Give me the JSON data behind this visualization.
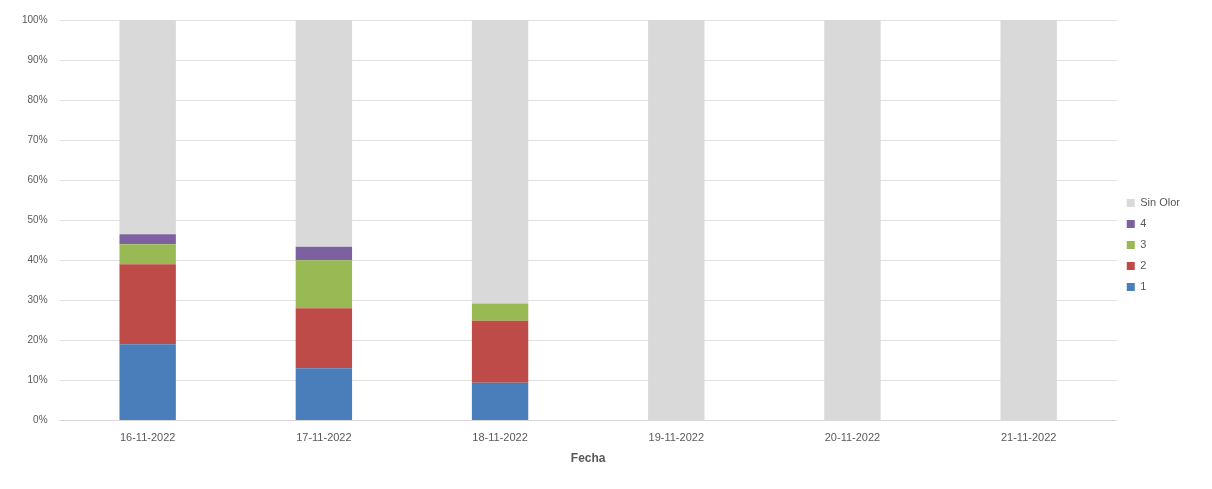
{
  "chart_data": {
    "type": "bar",
    "stacked": true,
    "xlabel": "Fecha",
    "categories": [
      "16-11-2022",
      "17-11-2022",
      "18-11-2022",
      "19-11-2022",
      "20-11-2022",
      "21-11-2022"
    ],
    "series": [
      {
        "name": "1",
        "color": "#4a7ebb",
        "values": [
          19,
          13,
          9.4,
          0,
          0,
          0
        ]
      },
      {
        "name": "2",
        "color": "#be4b48",
        "values": [
          20,
          15,
          15.5,
          0,
          0,
          0
        ]
      },
      {
        "name": "3",
        "color": "#98b954",
        "values": [
          5,
          12,
          4.3,
          0,
          0,
          0
        ]
      },
      {
        "name": "4",
        "color": "#7d60a0",
        "values": [
          2.5,
          3.4,
          0,
          0,
          0,
          0
        ]
      },
      {
        "name": "Sin Olor",
        "color": "#d9d9d9",
        "values": [
          53.5,
          56.6,
          70.8,
          100,
          100,
          100
        ]
      }
    ],
    "ylim": [
      0,
      100
    ],
    "yticks": [
      {
        "value": 0,
        "label": "0%"
      },
      {
        "value": 10,
        "label": "10%"
      },
      {
        "value": 20,
        "label": "20%"
      },
      {
        "value": 30,
        "label": "30%"
      },
      {
        "value": 40,
        "label": "40%"
      },
      {
        "value": 50,
        "label": "50%"
      },
      {
        "value": 60,
        "label": "60%"
      },
      {
        "value": 70,
        "label": "70%"
      },
      {
        "value": 80,
        "label": "80%"
      },
      {
        "value": 90,
        "label": "90%"
      },
      {
        "value": 100,
        "label": "100%"
      }
    ],
    "grid": "y",
    "legend": "right"
  }
}
